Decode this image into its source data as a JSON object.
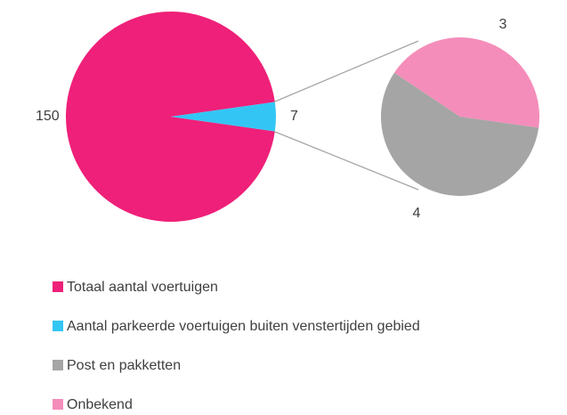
{
  "chart_data": {
    "type": "pie",
    "pies": [
      {
        "categories": [
          "Totaal aantal voertuigen",
          "Aantal parkeerde voertuigen buiten venstertijden gebied"
        ],
        "values": [
          150,
          7
        ],
        "colors": [
          "#ef2079",
          "#33c6f4"
        ]
      },
      {
        "categories": [
          "Post en pakketten",
          "Onbekend"
        ],
        "values": [
          4,
          3
        ],
        "colors": [
          "#a5a5a5",
          "#f48dba"
        ]
      }
    ]
  }
}
